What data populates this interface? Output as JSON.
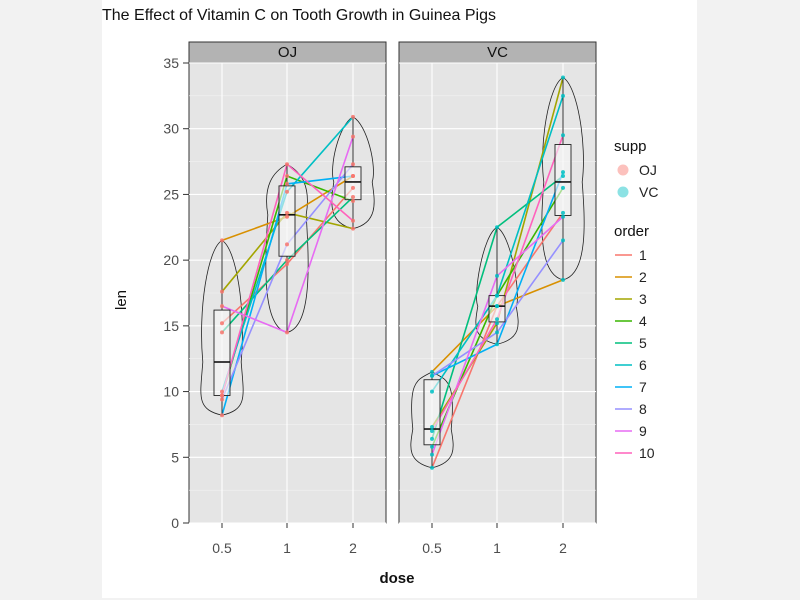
{
  "chart_data": {
    "type": "violin-box-line",
    "title": "The Effect of Vitamin C on Tooth Growth in Guinea Pigs",
    "xlabel": "dose",
    "ylabel": "len",
    "ylim": [
      0,
      35
    ],
    "yticks": [
      0,
      5,
      10,
      15,
      20,
      25,
      30,
      35
    ],
    "x_categories": [
      "0.5",
      "1",
      "2"
    ],
    "grid": true,
    "legend_position": "right",
    "facets": [
      {
        "label": "OJ",
        "series": [
          {
            "name": "1",
            "values": [
              15.2,
              19.7,
              25.5
            ]
          },
          {
            "name": "2",
            "values": [
              21.5,
              23.3,
              26.4
            ]
          },
          {
            "name": "3",
            "values": [
              17.6,
              23.6,
              22.4
            ]
          },
          {
            "name": "4",
            "values": [
              9.7,
              26.4,
              24.5
            ]
          },
          {
            "name": "5",
            "values": [
              14.5,
              20.0,
              24.8
            ]
          },
          {
            "name": "6",
            "values": [
              10.0,
              25.2,
              30.9
            ]
          },
          {
            "name": "7",
            "values": [
              8.2,
              25.8,
              26.4
            ]
          },
          {
            "name": "8",
            "values": [
              9.4,
              21.2,
              27.3
            ]
          },
          {
            "name": "9",
            "values": [
              16.5,
              14.5,
              29.4
            ]
          },
          {
            "name": "10",
            "values": [
              9.7,
              27.3,
              23.0
            ]
          }
        ],
        "box": {
          "min": 8.2,
          "q1": 9.7,
          "median": 12.25,
          "q3": 16.2,
          "max": 21.5
        },
        "box_by_dose": [
          {
            "dose": "0.5",
            "min": 8.2,
            "q1": 9.7,
            "median": 12.25,
            "q3": 16.2,
            "max": 21.5
          },
          {
            "dose": "1",
            "min": 14.5,
            "q1": 20.3,
            "median": 23.45,
            "q3": 25.65,
            "max": 27.3
          },
          {
            "dose": "2",
            "min": 22.4,
            "q1": 24.6,
            "median": 25.95,
            "q3": 27.1,
            "max": 30.9
          }
        ]
      },
      {
        "label": "VC",
        "series": [
          {
            "name": "1",
            "values": [
              4.2,
              16.5,
              23.6
            ]
          },
          {
            "name": "2",
            "values": [
              11.5,
              16.5,
              18.5
            ]
          },
          {
            "name": "3",
            "values": [
              7.3,
              15.2,
              33.9
            ]
          },
          {
            "name": "4",
            "values": [
              5.8,
              17.3,
              25.5
            ]
          },
          {
            "name": "5",
            "values": [
              6.4,
              22.5,
              26.4
            ]
          },
          {
            "name": "6",
            "values": [
              10.0,
              17.3,
              32.5
            ]
          },
          {
            "name": "7",
            "values": [
              11.2,
              13.6,
              26.7
            ]
          },
          {
            "name": "8",
            "values": [
              11.2,
              14.5,
              21.5
            ]
          },
          {
            "name": "9",
            "values": [
              5.2,
              18.8,
              23.3
            ]
          },
          {
            "name": "10",
            "values": [
              7.0,
              15.5,
              29.5
            ]
          }
        ],
        "box_by_dose": [
          {
            "dose": "0.5",
            "min": 4.2,
            "q1": 5.95,
            "median": 7.15,
            "q3": 10.9,
            "max": 11.5
          },
          {
            "dose": "1",
            "min": 13.6,
            "q1": 15.3,
            "median": 16.5,
            "q3": 17.3,
            "max": 22.5
          },
          {
            "dose": "2",
            "min": 18.5,
            "q1": 23.4,
            "median": 25.95,
            "q3": 28.8,
            "max": 33.9
          }
        ]
      }
    ],
    "legend_supp": {
      "title": "supp",
      "items": [
        {
          "label": "OJ",
          "color": "#F8766D"
        },
        {
          "label": "VC",
          "color": "#00BFC4"
        }
      ]
    },
    "legend_order": {
      "title": "order",
      "items": [
        {
          "label": "1",
          "color": "#F8766D"
        },
        {
          "label": "2",
          "color": "#D89000"
        },
        {
          "label": "3",
          "color": "#A3A500"
        },
        {
          "label": "4",
          "color": "#39B600"
        },
        {
          "label": "5",
          "color": "#00BF7D"
        },
        {
          "label": "6",
          "color": "#00BFC4"
        },
        {
          "label": "7",
          "color": "#00B0F6"
        },
        {
          "label": "8",
          "color": "#9590FF"
        },
        {
          "label": "9",
          "color": "#E76BF3"
        },
        {
          "label": "10",
          "color": "#FF62BC"
        }
      ]
    }
  }
}
